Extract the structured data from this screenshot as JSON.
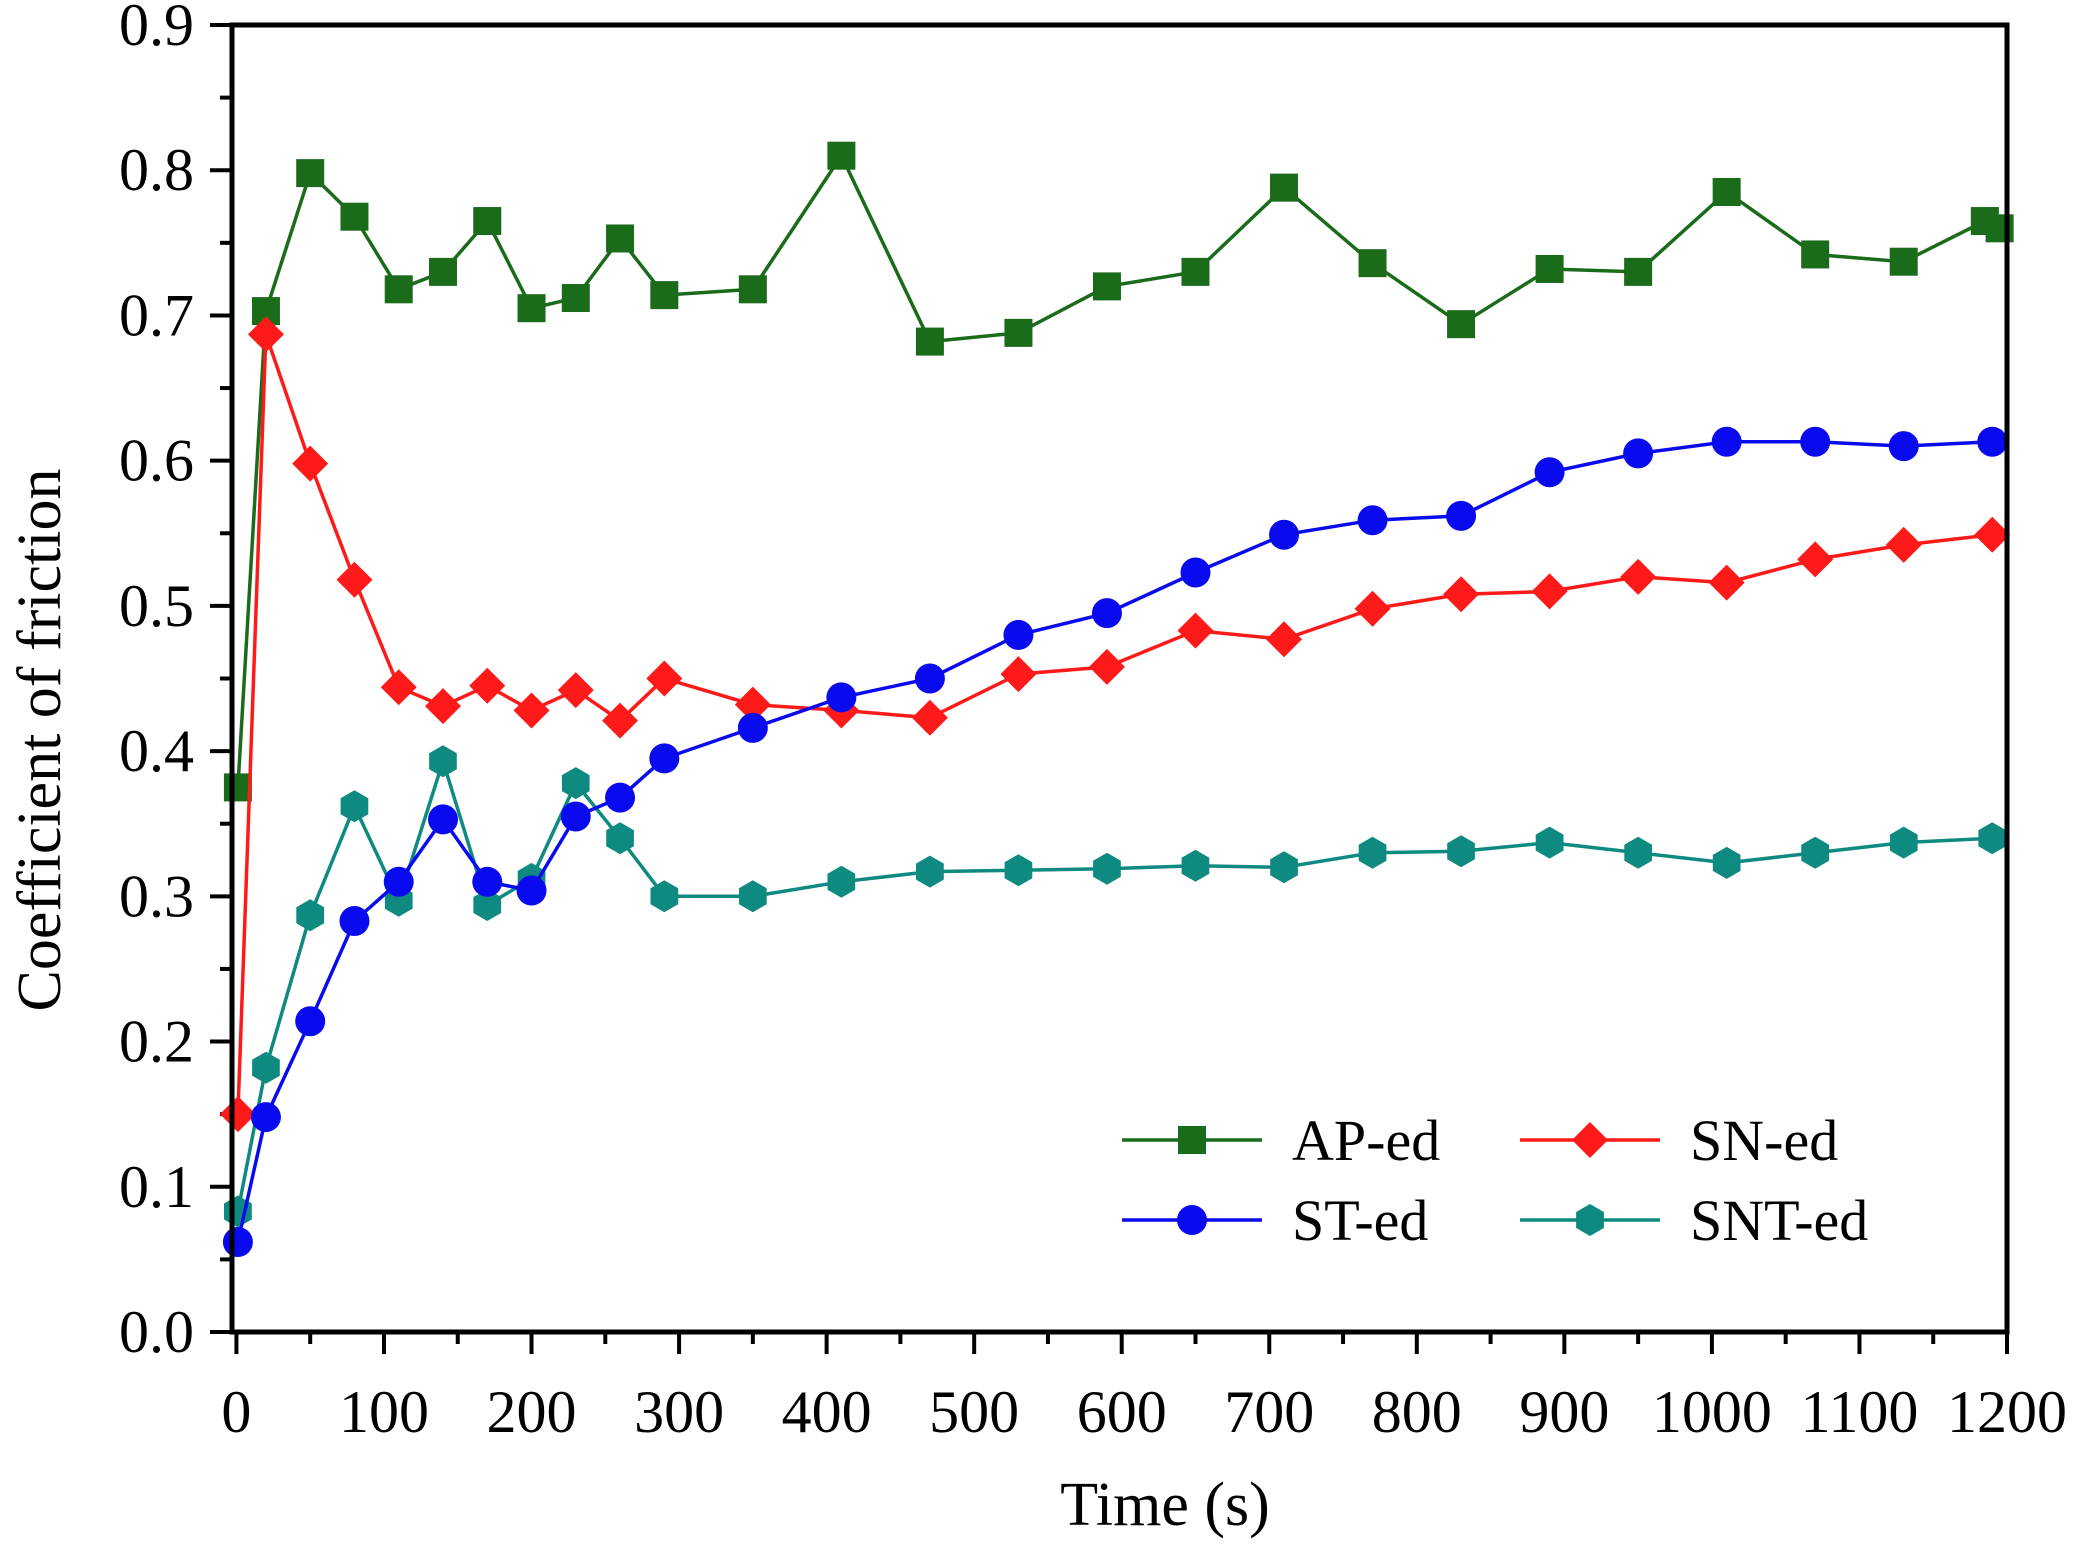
{
  "chart_data": {
    "type": "line",
    "title": "",
    "xlabel": "Time (s)",
    "ylabel": "Coefficient of friction",
    "xlim": [
      -3,
      1200
    ],
    "ylim": [
      0.0,
      0.9
    ],
    "xticks": [
      0,
      100,
      200,
      300,
      400,
      500,
      600,
      700,
      800,
      900,
      1000,
      1100,
      1200
    ],
    "yticks": [
      0.0,
      0.1,
      0.2,
      0.3,
      0.4,
      0.5,
      0.6,
      0.7,
      0.8,
      0.9
    ],
    "xtick_labels": [
      "0",
      "100",
      "200",
      "300",
      "400",
      "500",
      "600",
      "700",
      "800",
      "900",
      "1000",
      "1100",
      "1200"
    ],
    "ytick_labels": [
      "0.0",
      "0.1",
      "0.2",
      "0.3",
      "0.4",
      "0.5",
      "0.6",
      "0.7",
      "0.8",
      "0.9"
    ],
    "legend_position": "bottom-right",
    "series": [
      {
        "name": "AP-ed",
        "color": "#1a6b1a",
        "marker": "square",
        "x": [
          1,
          20,
          50,
          80,
          110,
          140,
          170,
          200,
          230,
          260,
          290,
          350,
          410,
          470,
          530,
          590,
          650,
          710,
          770,
          830,
          890,
          950,
          1010,
          1070,
          1130,
          1185,
          1195
        ],
        "values": [
          0.375,
          0.703,
          0.798,
          0.768,
          0.718,
          0.73,
          0.765,
          0.705,
          0.712,
          0.753,
          0.714,
          0.718,
          0.81,
          0.682,
          0.688,
          0.72,
          0.73,
          0.788,
          0.736,
          0.694,
          0.732,
          0.73,
          0.785,
          0.742,
          0.737,
          0.765,
          0.76
        ]
      },
      {
        "name": "SN-ed",
        "color": "#ff1a1a",
        "marker": "diamond",
        "x": [
          1,
          20,
          50,
          80,
          110,
          140,
          170,
          200,
          230,
          260,
          290,
          350,
          410,
          470,
          530,
          590,
          650,
          710,
          770,
          830,
          890,
          950,
          1010,
          1070,
          1130,
          1190
        ],
        "values": [
          0.15,
          0.687,
          0.598,
          0.518,
          0.444,
          0.431,
          0.445,
          0.428,
          0.442,
          0.421,
          0.45,
          0.432,
          0.428,
          0.423,
          0.453,
          0.458,
          0.483,
          0.477,
          0.498,
          0.508,
          0.51,
          0.52,
          0.516,
          0.532,
          0.542,
          0.549
        ]
      },
      {
        "name": "ST-ed",
        "color": "#0a0aee",
        "marker": "circle",
        "x": [
          1,
          20,
          50,
          80,
          110,
          140,
          170,
          200,
          230,
          260,
          290,
          350,
          410,
          470,
          530,
          590,
          650,
          710,
          770,
          830,
          890,
          950,
          1010,
          1070,
          1130,
          1190
        ],
        "values": [
          0.062,
          0.148,
          0.214,
          0.283,
          0.31,
          0.353,
          0.31,
          0.304,
          0.355,
          0.368,
          0.395,
          0.416,
          0.437,
          0.45,
          0.48,
          0.495,
          0.523,
          0.549,
          0.559,
          0.562,
          0.592,
          0.605,
          0.613,
          0.613,
          0.61,
          0.613
        ]
      },
      {
        "name": "SNT-ed",
        "color": "#0f8a80",
        "marker": "hexagon",
        "x": [
          1,
          20,
          50,
          80,
          110,
          140,
          170,
          200,
          230,
          260,
          290,
          350,
          410,
          470,
          530,
          590,
          650,
          710,
          770,
          830,
          890,
          950,
          1010,
          1070,
          1130,
          1190
        ],
        "values": [
          0.083,
          0.182,
          0.287,
          0.362,
          0.297,
          0.393,
          0.294,
          0.312,
          0.378,
          0.34,
          0.3,
          0.3,
          0.31,
          0.317,
          0.318,
          0.319,
          0.321,
          0.32,
          0.33,
          0.331,
          0.337,
          0.33,
          0.323,
          0.33,
          0.337,
          0.34
        ]
      }
    ]
  }
}
